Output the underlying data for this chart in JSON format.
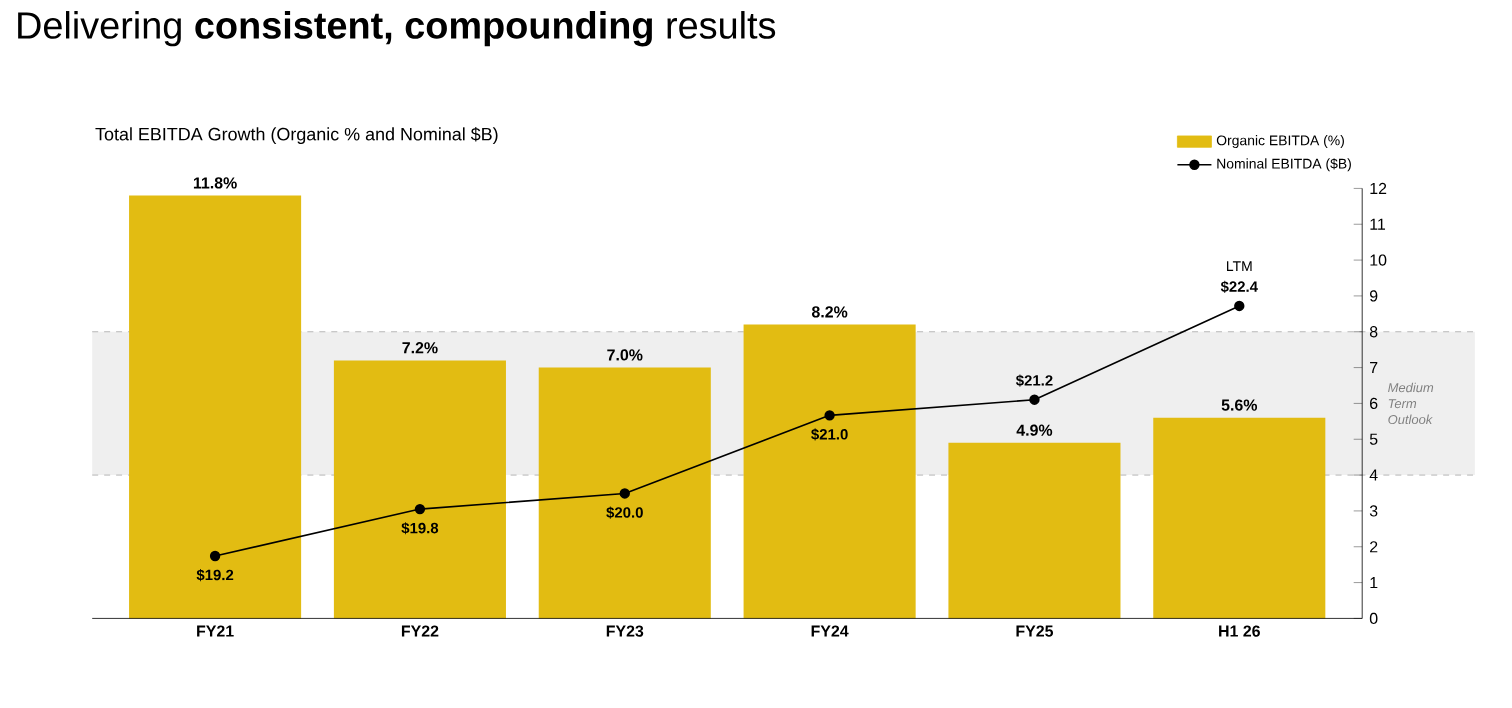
{
  "chart_data": {
    "type": "bar",
    "title": "Delivering **consistent, compounding** results",
    "subtitle": "Total EBITDA Growth (Organic % and Nominal $B)",
    "categories": [
      "FY21",
      "FY22",
      "FY23",
      "FY24",
      "FY25",
      "H1 26"
    ],
    "series": [
      {
        "name": "Organic EBITDA (%)",
        "color": "#e2bc12",
        "values": [
          11.8,
          7.2,
          7.0,
          8.2,
          4.9,
          5.6
        ],
        "value_labels": [
          "11.8%",
          "7.2%",
          "7.0%",
          "8.2%",
          "4.9%",
          "5.6%"
        ]
      },
      {
        "name": "Nominal EBITDA ($B)",
        "type": "line",
        "axis": "y2",
        "color": "#000000",
        "marker": "circle",
        "values": [
          19.2,
          19.8,
          20.0,
          21.0,
          21.2,
          22.4
        ],
        "value_labels": [
          "$19.2",
          "$19.8",
          "$20.0",
          "$21.0",
          "$21.2",
          "$22.4"
        ]
      }
    ],
    "ylim": [
      0,
      12
    ],
    "yticks": [
      0,
      1,
      2,
      3,
      4,
      5,
      6,
      7,
      8,
      9,
      10,
      11,
      12
    ],
    "bands": [
      {
        "axis": "y",
        "from": 4,
        "to": 8,
        "label": "Medium Term Outlook",
        "color": "#efefef"
      }
    ],
    "annotations": [
      "LTM"
    ],
    "legend": "top right"
  }
}
